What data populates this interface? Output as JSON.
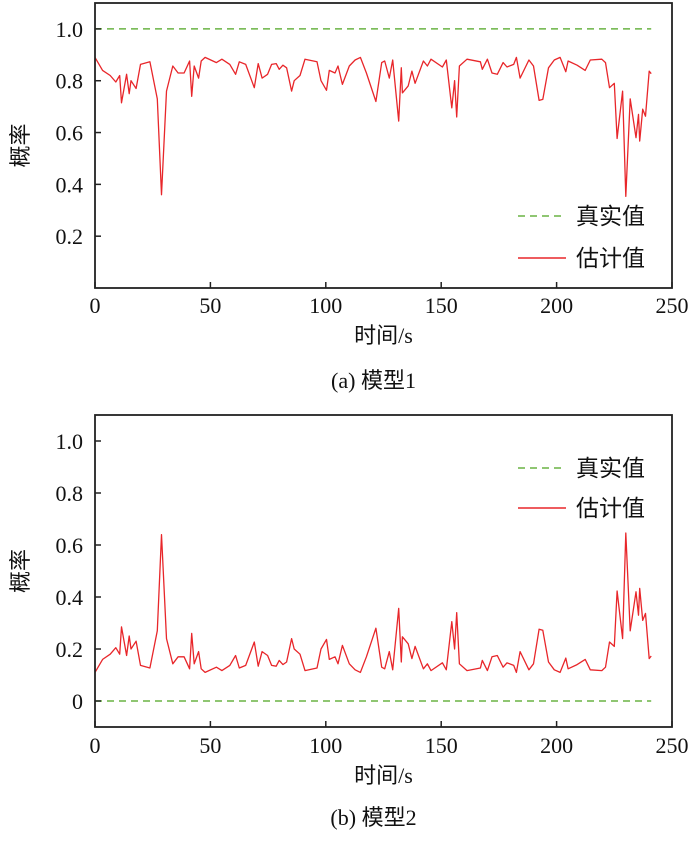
{
  "colors": {
    "true_value": "#6ab344",
    "estimate": "#e8262a",
    "axis": "#222222"
  },
  "chart_data": [
    {
      "type": "line",
      "caption": "(a) 模型1",
      "xlabel": "时间/s",
      "ylabel": "概率",
      "xlim": [
        0,
        250
      ],
      "ylim": [
        0,
        1.1
      ],
      "xticks": [
        0,
        50,
        100,
        150,
        200,
        250
      ],
      "yticks": [
        0.2,
        0.4,
        0.6,
        0.8,
        1.0
      ],
      "ytick_labels": [
        "0.2",
        "0.4",
        "0.6",
        "0.8",
        "1.0"
      ],
      "grid": false,
      "legend_position": "lower-right",
      "series": [
        {
          "name": "真实值",
          "style": "dashed",
          "x": [
            0,
            241
          ],
          "y": [
            1.0,
            1.0
          ]
        },
        {
          "name": "估计值",
          "style": "solid",
          "x": [
            0,
            3.3,
            6.6,
            9,
            10.7,
            11.5,
            13.7,
            14.8,
            15.6,
            17.8,
            19.7,
            23.8,
            27,
            28.8,
            31,
            33.7,
            36,
            38.6,
            41,
            41.9,
            43,
            44.9,
            46,
            47.7,
            52.6,
            55,
            58.4,
            60.9,
            62.5,
            65.3,
            69,
            70.7,
            72.4,
            74.8,
            76.5,
            78.5,
            79.8,
            81.4,
            83,
            85.2,
            86.3,
            88.8,
            91,
            96.2,
            97.9,
            100.3,
            101.5,
            104,
            105.3,
            107.2,
            110.2,
            112.7,
            115,
            117.6,
            121.7,
            124.2,
            125.5,
            127.5,
            129,
            131.6,
            132.7,
            133.2,
            135.7,
            137.3,
            138.7,
            142.3,
            144,
            145.6,
            150.5,
            152.2,
            154.6,
            155.8,
            156.7,
            157.9,
            161.2,
            167,
            167.8,
            170,
            172,
            174.3,
            176.8,
            178.5,
            181.4,
            182.6,
            184.2,
            188,
            190,
            192.4,
            194,
            196.5,
            199,
            201.5,
            204,
            205,
            208.9,
            212.4,
            214.6,
            219.6,
            221.2,
            222.9,
            225,
            226.2,
            228.6,
            230,
            231.9,
            234.4,
            235.5,
            236,
            237.3,
            238.5,
            240.1,
            241
          ],
          "y": [
            0.89,
            0.84,
            0.82,
            0.795,
            0.82,
            0.715,
            0.825,
            0.75,
            0.8,
            0.77,
            0.863,
            0.873,
            0.73,
            0.36,
            0.76,
            0.857,
            0.83,
            0.83,
            0.876,
            0.74,
            0.857,
            0.81,
            0.876,
            0.89,
            0.87,
            0.883,
            0.863,
            0.825,
            0.873,
            0.863,
            0.773,
            0.866,
            0.81,
            0.825,
            0.863,
            0.866,
            0.844,
            0.86,
            0.85,
            0.76,
            0.8,
            0.82,
            0.883,
            0.873,
            0.8,
            0.763,
            0.84,
            0.83,
            0.857,
            0.786,
            0.857,
            0.88,
            0.89,
            0.83,
            0.72,
            0.87,
            0.876,
            0.81,
            0.88,
            0.644,
            0.85,
            0.753,
            0.78,
            0.837,
            0.79,
            0.876,
            0.857,
            0.883,
            0.853,
            0.88,
            0.695,
            0.8,
            0.66,
            0.857,
            0.883,
            0.873,
            0.844,
            0.883,
            0.83,
            0.825,
            0.87,
            0.853,
            0.863,
            0.89,
            0.81,
            0.88,
            0.857,
            0.724,
            0.728,
            0.85,
            0.88,
            0.89,
            0.835,
            0.876,
            0.86,
            0.84,
            0.88,
            0.883,
            0.87,
            0.773,
            0.79,
            0.577,
            0.76,
            0.354,
            0.73,
            0.58,
            0.67,
            0.567,
            0.69,
            0.663,
            0.837,
            0.827
          ]
        }
      ]
    },
    {
      "type": "line",
      "caption": "(b) 模型2",
      "xlabel": "时间/s",
      "ylabel": "概率",
      "xlim": [
        0,
        250
      ],
      "ylim": [
        -0.1,
        1.1
      ],
      "xticks": [
        0,
        50,
        100,
        150,
        200,
        250
      ],
      "yticks": [
        0,
        0.2,
        0.4,
        0.6,
        0.8,
        1.0
      ],
      "ytick_labels": [
        "0",
        "0.2",
        "0.4",
        "0.6",
        "0.8",
        "1.0"
      ],
      "grid": false,
      "legend_position": "upper-right",
      "series": [
        {
          "name": "真实值",
          "style": "dashed",
          "x": [
            0,
            241
          ],
          "y": [
            0,
            0
          ]
        },
        {
          "name": "估计值",
          "style": "solid",
          "x": [
            0,
            3.3,
            6.6,
            9,
            10.7,
            11.5,
            13.7,
            14.8,
            15.6,
            17.8,
            19.7,
            23.8,
            27,
            28.8,
            31,
            33.7,
            36,
            38.6,
            41,
            41.9,
            43,
            44.9,
            46,
            47.7,
            52.6,
            55,
            58.4,
            60.9,
            62.5,
            65.3,
            69,
            70.7,
            72.4,
            74.8,
            76.5,
            78.5,
            79.8,
            81.4,
            83,
            85.2,
            86.3,
            88.8,
            91,
            96.2,
            97.9,
            100.3,
            101.5,
            104,
            105.3,
            107.2,
            110.2,
            112.7,
            115,
            117.6,
            121.7,
            124.2,
            125.5,
            127.5,
            129,
            131.6,
            132.7,
            133.2,
            135.7,
            137.3,
            138.7,
            142.3,
            144,
            145.6,
            150.5,
            152.2,
            154.6,
            155.8,
            156.7,
            157.9,
            161.2,
            167,
            167.8,
            170,
            172,
            174.3,
            176.8,
            178.5,
            181.4,
            182.6,
            184.2,
            188,
            190,
            192.4,
            194,
            196.5,
            199,
            201.5,
            204,
            205,
            208.9,
            212.4,
            214.6,
            219.6,
            221.2,
            222.9,
            225,
            226.2,
            228.6,
            230,
            231.9,
            234.4,
            235.5,
            236,
            237.3,
            238.5,
            240.1,
            241
          ],
          "y": [
            0.11,
            0.16,
            0.18,
            0.205,
            0.18,
            0.285,
            0.175,
            0.25,
            0.2,
            0.23,
            0.137,
            0.127,
            0.27,
            0.64,
            0.24,
            0.143,
            0.17,
            0.17,
            0.124,
            0.26,
            0.143,
            0.19,
            0.124,
            0.11,
            0.13,
            0.117,
            0.137,
            0.175,
            0.127,
            0.137,
            0.227,
            0.134,
            0.19,
            0.175,
            0.137,
            0.134,
            0.156,
            0.14,
            0.15,
            0.24,
            0.2,
            0.18,
            0.117,
            0.127,
            0.2,
            0.237,
            0.16,
            0.17,
            0.143,
            0.214,
            0.143,
            0.12,
            0.11,
            0.17,
            0.28,
            0.13,
            0.124,
            0.19,
            0.12,
            0.356,
            0.15,
            0.247,
            0.22,
            0.163,
            0.21,
            0.124,
            0.143,
            0.117,
            0.147,
            0.12,
            0.305,
            0.2,
            0.34,
            0.143,
            0.117,
            0.127,
            0.156,
            0.117,
            0.17,
            0.175,
            0.13,
            0.147,
            0.137,
            0.11,
            0.19,
            0.12,
            0.143,
            0.276,
            0.272,
            0.15,
            0.12,
            0.11,
            0.165,
            0.124,
            0.14,
            0.16,
            0.12,
            0.117,
            0.13,
            0.227,
            0.21,
            0.423,
            0.24,
            0.646,
            0.27,
            0.42,
            0.33,
            0.433,
            0.31,
            0.337,
            0.163,
            0.173
          ]
        }
      ]
    }
  ]
}
